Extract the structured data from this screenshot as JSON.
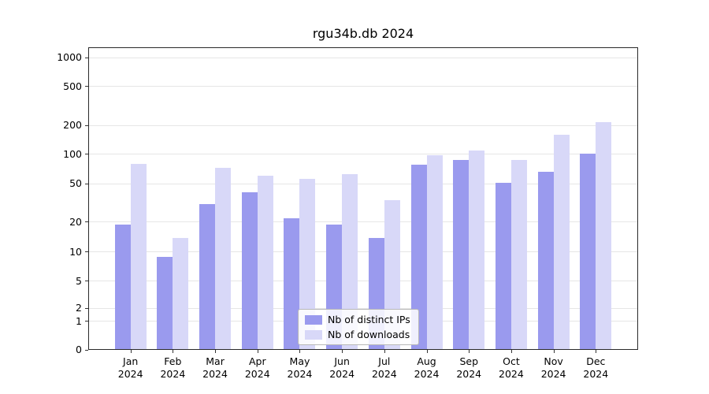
{
  "chart_data": {
    "type": "bar",
    "title": "rgu34b.db 2024",
    "scale": "symlog",
    "grid": "horizontal",
    "legend_position": "bottom-center-inside",
    "categories": [
      "Jan",
      "Feb",
      "Mar",
      "Apr",
      "May",
      "Jun",
      "Jul",
      "Aug",
      "Sep",
      "Oct",
      "Nov",
      "Dec"
    ],
    "category_year": "2024",
    "y_ticks": [
      0,
      1,
      2,
      5,
      10,
      20,
      50,
      100,
      200,
      500,
      1000
    ],
    "ylim": [
      0,
      1000
    ],
    "series": [
      {
        "name": "Nb of distinct IPs",
        "color": "#9a9aee",
        "values": [
          19,
          9,
          31,
          41,
          22,
          19,
          14,
          78,
          87,
          51,
          66,
          102
        ]
      },
      {
        "name": "Nb of downloads",
        "color": "#d8d8f8",
        "values": [
          80,
          14,
          73,
          60,
          56,
          63,
          34,
          98,
          110,
          88,
          160,
          215
        ]
      }
    ]
  }
}
